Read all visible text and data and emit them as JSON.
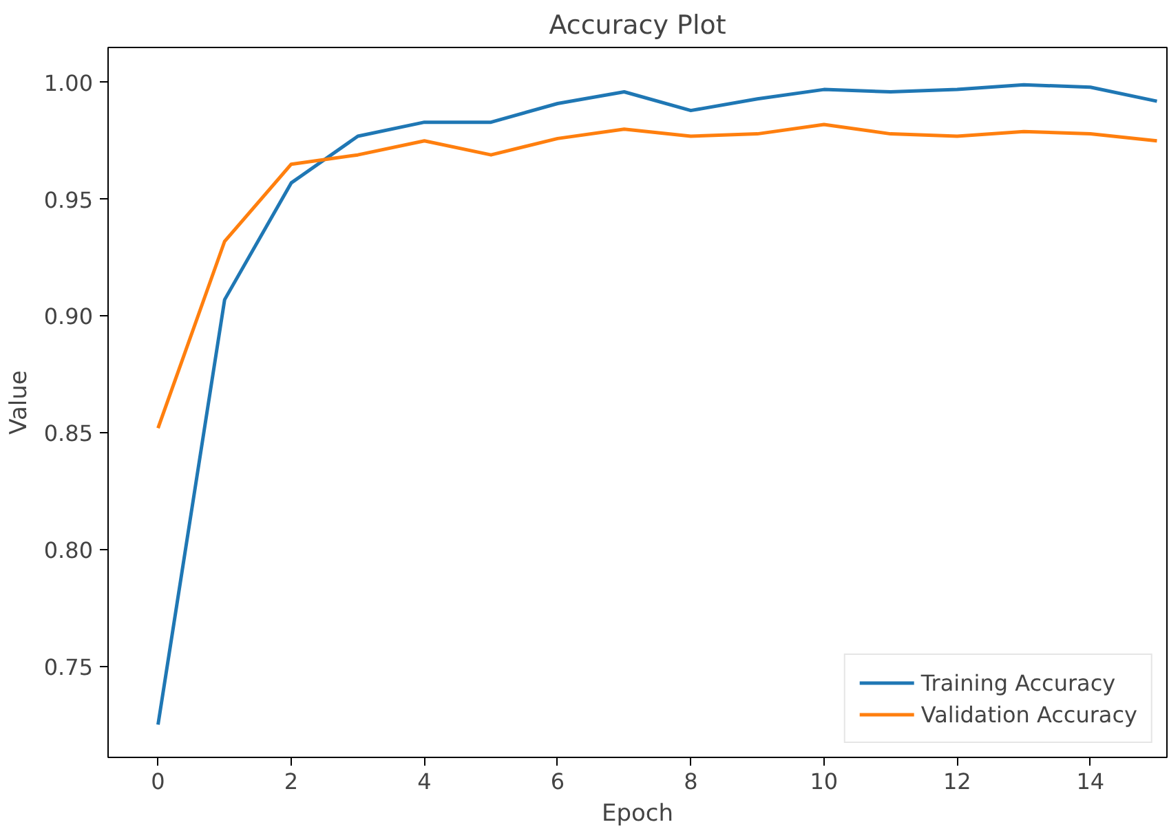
{
  "chart_data": {
    "type": "line",
    "title": "Accuracy Plot",
    "xlabel": "Epoch",
    "ylabel": "Value",
    "x": [
      0,
      1,
      2,
      3,
      4,
      5,
      6,
      7,
      8,
      9,
      10,
      11,
      12,
      13,
      14,
      15
    ],
    "series": [
      {
        "name": "Training Accuracy",
        "color": "#1f77b4",
        "values": [
          0.725,
          0.907,
          0.957,
          0.977,
          0.983,
          0.983,
          0.991,
          0.996,
          0.988,
          0.993,
          0.997,
          0.996,
          0.997,
          0.999,
          0.998,
          0.992
        ]
      },
      {
        "name": "Validation Accuracy",
        "color": "#ff7f0e",
        "values": [
          0.852,
          0.932,
          0.965,
          0.969,
          0.975,
          0.969,
          0.976,
          0.98,
          0.977,
          0.978,
          0.982,
          0.978,
          0.977,
          0.979,
          0.978,
          0.975
        ]
      }
    ],
    "xlim": [
      -0.75,
      15.15
    ],
    "ylim": [
      0.711,
      1.015
    ],
    "xticks": [
      0,
      2,
      4,
      6,
      8,
      10,
      12,
      14
    ],
    "yticks": [
      {
        "value": 0.75,
        "label": "0.75"
      },
      {
        "value": 0.8,
        "label": "0.80"
      },
      {
        "value": 0.85,
        "label": "0.85"
      },
      {
        "value": 0.9,
        "label": "0.90"
      },
      {
        "value": 0.95,
        "label": "0.95"
      },
      {
        "value": 1.0,
        "label": "1.00"
      }
    ],
    "grid": false,
    "legend": "bottom right",
    "marker": "none",
    "line_style": "solid"
  }
}
